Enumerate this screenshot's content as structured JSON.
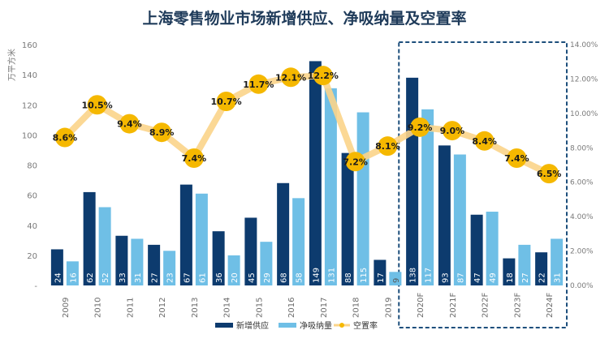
{
  "title": "上海零售物业市场新增供应、净吸纳量及空置率",
  "chart_data": {
    "type": "bar",
    "title": "上海零售物业市场新增供应、净吸纳量及空置率",
    "ylabel": "万平方米",
    "ylim": [
      0,
      160
    ],
    "y_ticks": [
      "-",
      "20",
      "40",
      "60",
      "80",
      "100",
      "120",
      "140",
      "160"
    ],
    "y2lim": [
      0,
      14
    ],
    "y2_ticks": [
      "0.00%",
      "2.00%",
      "4.00%",
      "6.00%",
      "8.00%",
      "10.00%",
      "12.00%",
      "14.00%"
    ],
    "categories": [
      "2009",
      "2010",
      "2011",
      "2012",
      "2013",
      "2014",
      "2015",
      "2016",
      "2017",
      "2018",
      "2019",
      "2020F",
      "2021F",
      "2022F",
      "2023F",
      "2024F"
    ],
    "series": [
      {
        "name": "新增供应",
        "kind": "bar",
        "color": "#0d3b6e",
        "values": [
          24,
          62,
          33,
          27,
          67,
          36,
          45,
          68,
          149,
          88,
          17,
          138,
          93,
          47,
          18,
          22
        ]
      },
      {
        "name": "净吸纳量",
        "kind": "bar",
        "color": "#6fbfe6",
        "values": [
          16,
          52,
          31,
          23,
          61,
          20,
          29,
          58,
          131,
          115,
          9,
          117,
          87,
          49,
          27,
          31
        ]
      },
      {
        "name": "空置率",
        "kind": "line",
        "axis": "right",
        "color": "#fbd48a",
        "marker_color": "#f5b800",
        "values": [
          8.6,
          10.5,
          9.4,
          8.9,
          7.4,
          10.7,
          11.7,
          12.1,
          12.2,
          7.2,
          8.1,
          9.2,
          9.0,
          8.4,
          7.4,
          6.5
        ],
        "labels": [
          "8.6%",
          "10.5%",
          "9.4%",
          "8.9%",
          "7.4%",
          "10.7%",
          "11.7%",
          "12.1%",
          "12.2%",
          "7.2%",
          "8.1%",
          "9.2%",
          "9.0%",
          "8.4%",
          "7.4%",
          "6.5%"
        ]
      }
    ],
    "legend": [
      "新增供应",
      "净吸纳量",
      "空置率"
    ],
    "legend_position": "bottom",
    "grid": false,
    "forecast_box": [
      "2020F",
      "2024F"
    ]
  }
}
